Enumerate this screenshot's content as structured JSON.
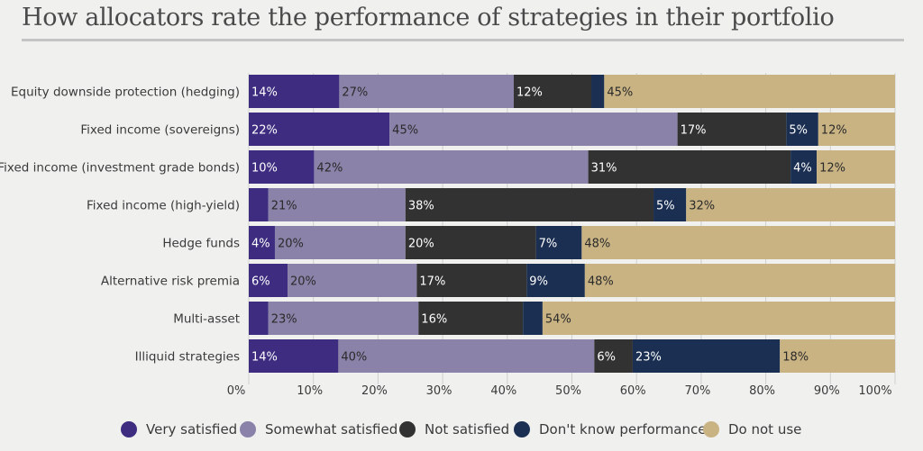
{
  "title": "How allocators rate the performance of strategies in their portfolio",
  "chart_data": {
    "type": "bar",
    "orientation": "horizontal",
    "stacked": true,
    "categories": [
      "Equity downside protection (hedging)",
      "Fixed income (sovereigns)",
      "Fixed income (investment grade bonds)",
      "Fixed income (high-yield)",
      "Hedge funds",
      "Alternative risk premia",
      "Multi-asset",
      "Illiquid strategies"
    ],
    "series": [
      {
        "name": "Very satisfied",
        "color": "#3d2c80",
        "values": [
          14,
          22,
          10,
          3,
          4,
          6,
          3,
          14
        ]
      },
      {
        "name": "Somewhat satisfied",
        "color": "#8a82a8",
        "values": [
          27,
          45,
          42,
          21,
          20,
          20,
          23,
          40
        ]
      },
      {
        "name": "Not satisfied",
        "color": "#323232",
        "values": [
          12,
          17,
          31,
          38,
          20,
          17,
          16,
          6
        ]
      },
      {
        "name": "Don't know performance",
        "color": "#1b2f52",
        "values": [
          2,
          5,
          4,
          5,
          7,
          9,
          3,
          23
        ]
      },
      {
        "name": "Do not use",
        "color": "#c9b383",
        "values": [
          45,
          12,
          12,
          32,
          48,
          48,
          54,
          18
        ]
      }
    ],
    "data_labels": [
      [
        "14%",
        "27%",
        "12%",
        "",
        "45%"
      ],
      [
        "22%",
        "45%",
        "17%",
        "5%",
        "12%"
      ],
      [
        "10%",
        "42%",
        "31%",
        "4%",
        "12%"
      ],
      [
        "",
        "21%",
        "38%",
        "5%",
        "32%"
      ],
      [
        "4%",
        "20%",
        "20%",
        "7%",
        "48%"
      ],
      [
        "6%",
        "20%",
        "17%",
        "9%",
        "48%"
      ],
      [
        "",
        "23%",
        "16%",
        "",
        "54%"
      ],
      [
        "14%",
        "40%",
        "6%",
        "23%",
        "18%"
      ]
    ],
    "xlim": [
      0,
      100
    ],
    "xticks": [
      "0%",
      "10%",
      "20%",
      "30%",
      "40%",
      "50%",
      "60%",
      "70%",
      "80%",
      "90%",
      "100%"
    ],
    "grid": true,
    "legend_position": "bottom"
  }
}
